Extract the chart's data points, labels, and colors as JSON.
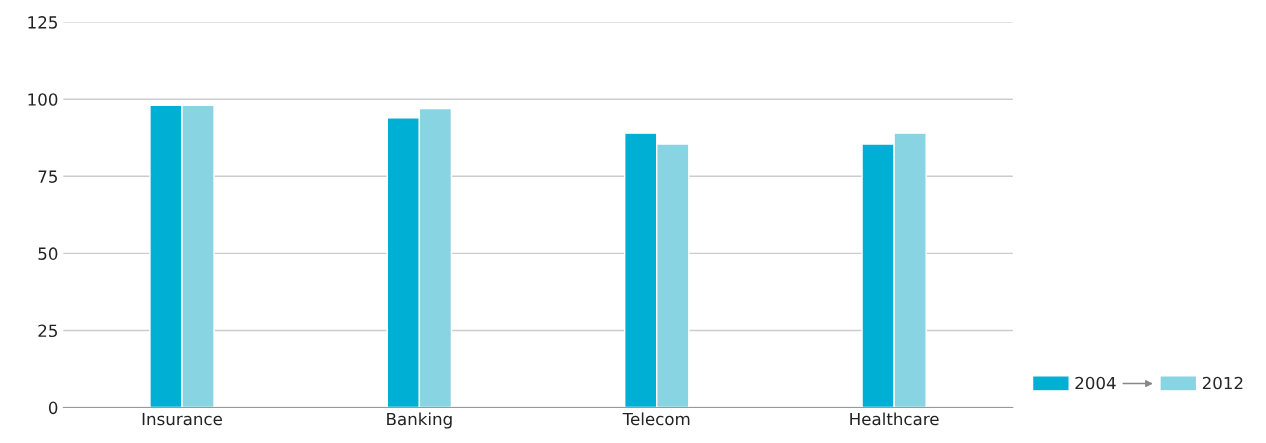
{
  "chart_data": {
    "type": "bar",
    "categories": [
      "Insurance",
      "Banking",
      "Telecom",
      "Healthcare"
    ],
    "series": [
      {
        "name": "2004",
        "color": "#00b0d4",
        "values": [
          98,
          94,
          89,
          85.5
        ]
      },
      {
        "name": "2012",
        "color": "#89d4e3",
        "values": [
          98,
          97,
          85.5,
          89
        ]
      }
    ],
    "ylim": [
      0,
      125
    ],
    "yticks": [
      0,
      25,
      50,
      75,
      100,
      125
    ],
    "grid": "y",
    "legend": "bottom right"
  }
}
